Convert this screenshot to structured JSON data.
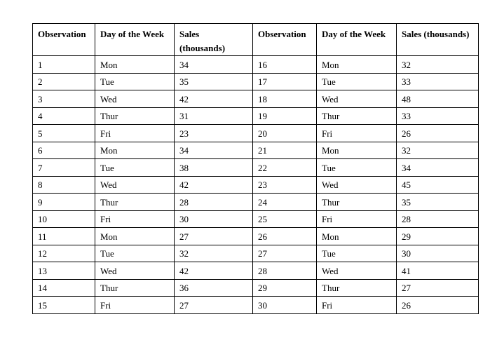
{
  "colors": {
    "background": "#ffffff",
    "text": "#000000",
    "border": "#000000"
  },
  "table": {
    "headers": [
      "Observation",
      "Day of the Week",
      "Sales\n(thousands)",
      "Observation",
      "Day of the Week",
      "Sales (thousands)"
    ],
    "rows": [
      [
        "1",
        "Mon",
        "34",
        "16",
        "Mon",
        "32"
      ],
      [
        "2",
        "Tue",
        "35",
        "17",
        "Tue",
        "33"
      ],
      [
        "3",
        "Wed",
        "42",
        "18",
        "Wed",
        "48"
      ],
      [
        "4",
        "Thur",
        "31",
        "19",
        "Thur",
        "33"
      ],
      [
        "5",
        "Fri",
        "23",
        "20",
        "Fri",
        "26"
      ],
      [
        "6",
        "Mon",
        "34",
        "21",
        "Mon",
        "32"
      ],
      [
        "7",
        "Tue",
        "38",
        "22",
        "Tue",
        "34"
      ],
      [
        "8",
        "Wed",
        "42",
        "23",
        "Wed",
        "45"
      ],
      [
        "9",
        "Thur",
        "28",
        "24",
        "Thur",
        "35"
      ],
      [
        "10",
        "Fri",
        "30",
        "25",
        "Fri",
        "28"
      ],
      [
        "11",
        "Mon",
        "27",
        "26",
        "Mon",
        "29"
      ],
      [
        "12",
        "Tue",
        "32",
        "27",
        "Tue",
        "30"
      ],
      [
        "13",
        "Wed",
        "42",
        "28",
        "Wed",
        "41"
      ],
      [
        "14",
        "Thur",
        "36",
        "29",
        "Thur",
        "27"
      ],
      [
        "15",
        "Fri",
        "27",
        "30",
        "Fri",
        "26"
      ]
    ]
  }
}
